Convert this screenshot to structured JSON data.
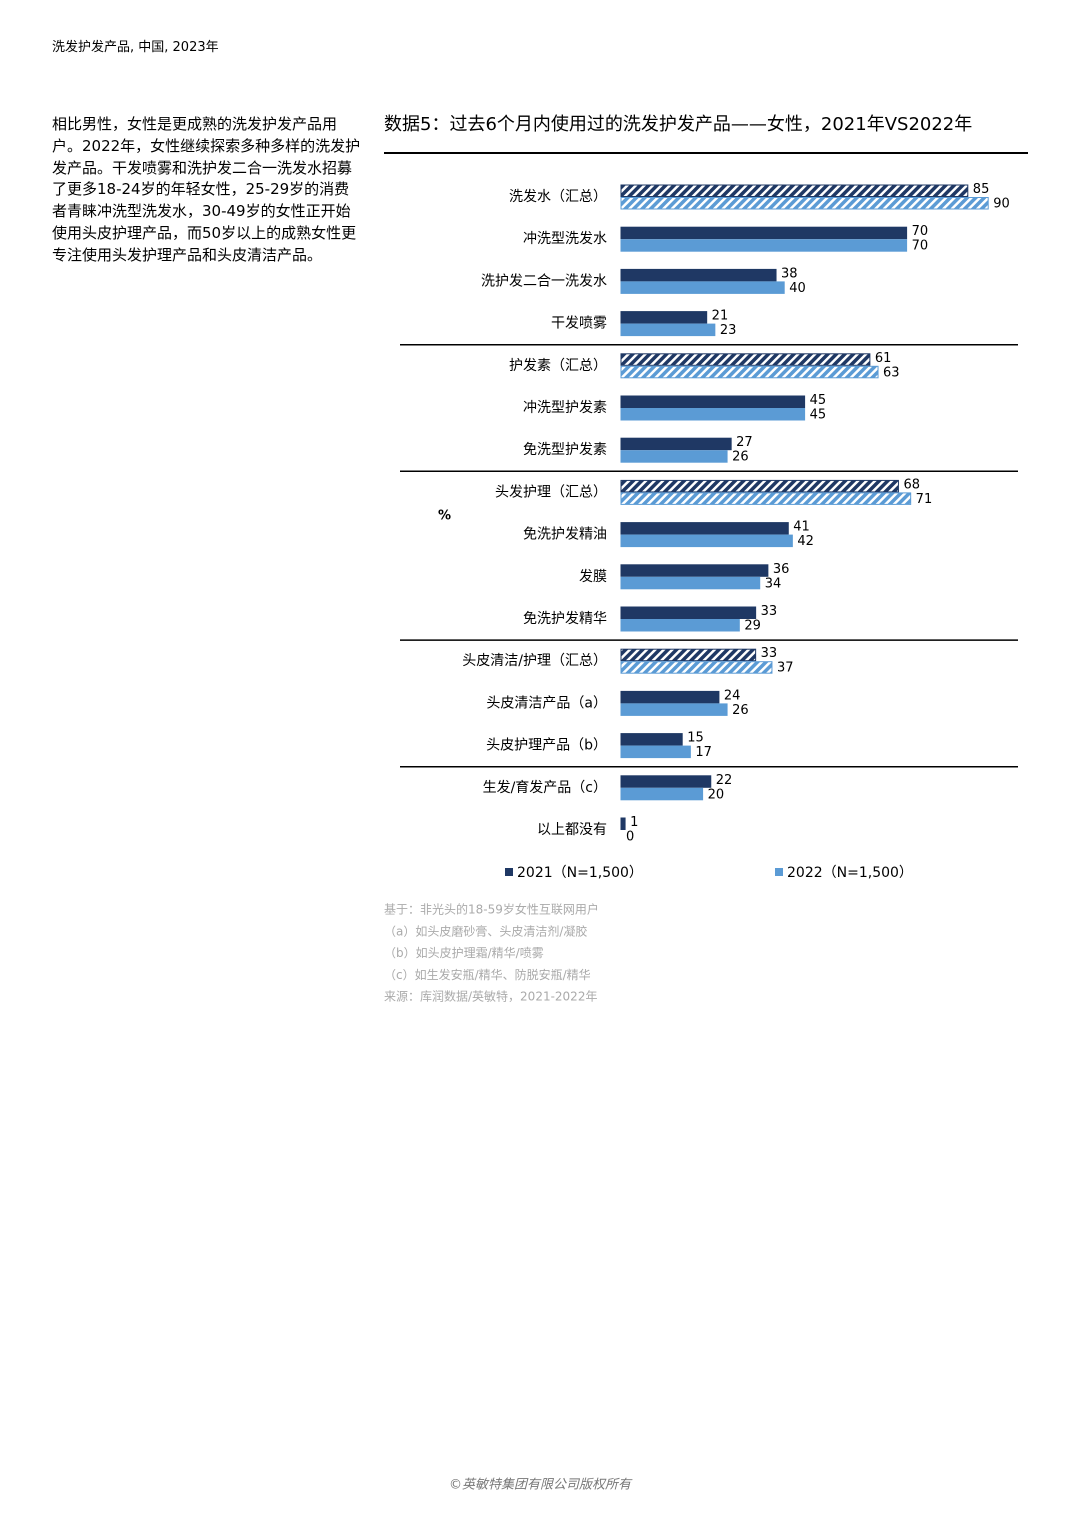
{
  "header": {
    "title": "洗发护发产品, 中国, 2023年"
  },
  "body": {
    "paragraph": "相比男性，女性是更成熟的洗发护发产品用户。2022年，女性继续探索多种多样的洗发护发产品。干发喷雾和洗护发二合一洗发水招募了更多18-24岁的年轻女性，25-29岁的消费者青睐冲洗型洗发水，30-49岁的女性正开始使用头皮护理产品，而50岁以上的成熟女性更专注使用头发护理产品和头皮清洁产品。"
  },
  "chart_data": {
    "type": "bar",
    "orientation": "horizontal",
    "title": "数据5：过去6个月内使用过的洗发护发产品——女性，2021年VS2022年",
    "axis_label": "%",
    "categories": [
      "洗发水（汇总）",
      "冲洗型洗发水",
      "洗护发二合一洗发水",
      "干发喷雾",
      "护发素（汇总）",
      "冲洗型护发素",
      "免洗型护发素",
      "头发护理（汇总）",
      "免洗护发精油",
      "发膜",
      "免洗护发精华",
      "头皮清洁/护理（汇总）",
      "头皮清洁产品（a）",
      "头皮护理产品（b）",
      "生发/育发产品（c）",
      "以上都没有"
    ],
    "hatched": [
      0,
      4,
      7,
      11
    ],
    "series": [
      {
        "name": "2021（N=1,500）",
        "color": "#1f3864",
        "values": [
          85,
          70,
          38,
          21,
          61,
          45,
          27,
          68,
          41,
          36,
          33,
          33,
          24,
          15,
          22,
          1
        ]
      },
      {
        "name": "2022（N=1,500）",
        "color": "#5b9bd5",
        "values": [
          90,
          70,
          40,
          23,
          63,
          45,
          26,
          71,
          42,
          34,
          29,
          37,
          26,
          17,
          20,
          0
        ]
      }
    ]
  },
  "notes": [
    "基于：非光头的18-59岁女性互联网用户",
    "（a）如头皮磨砂膏、头皮清洁剂/凝胶",
    "（b）如头皮护理霜/精华/喷雾",
    "（c）如生发安瓶/精华、防脱安瓶/精华",
    "来源：库润数据/英敏特，2021-2022年"
  ],
  "footer": {
    "copyright": "©英敏特集团有限公司版权所有"
  }
}
